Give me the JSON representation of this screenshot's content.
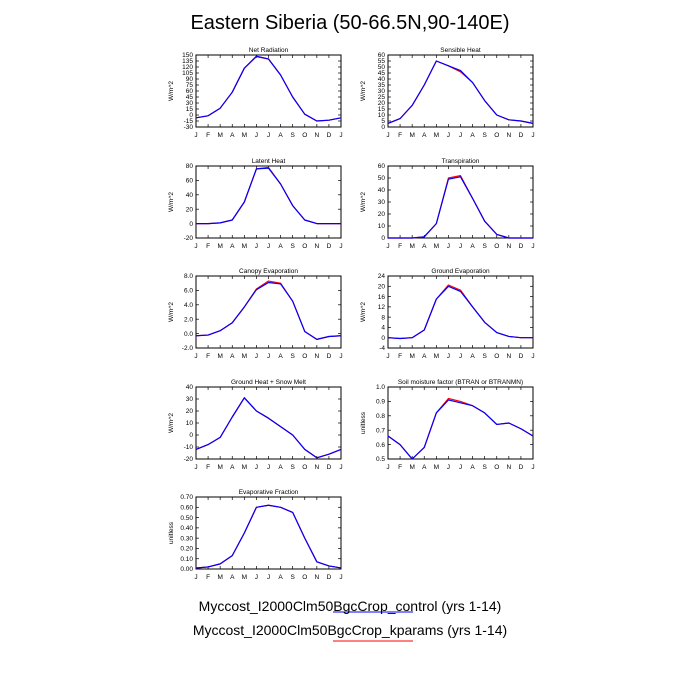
{
  "figure": {
    "title": "Eastern Siberia (50-66.5N,90-140E)",
    "legend": [
      {
        "label": "Myccost_I2000Clm50BgcCrop_control (yrs 1-14)",
        "color": "#0000ff"
      },
      {
        "label": "Myccost_I2000Clm50BgcCrop_kparams (yrs 1-14)",
        "color": "#ff0000"
      }
    ]
  },
  "chart_data": [
    {
      "type": "line",
      "title": "Net Radiation",
      "ylabel": "W/m^2",
      "x": [
        "J",
        "F",
        "M",
        "A",
        "M",
        "J",
        "J",
        "A",
        "S",
        "O",
        "N",
        "D",
        "J"
      ],
      "ylim": [
        -30,
        150
      ],
      "yticks": [
        -30,
        -15,
        0,
        15,
        30,
        45,
        60,
        75,
        90,
        105,
        120,
        135,
        150
      ],
      "series": [
        {
          "color": "#0000ff",
          "values": [
            -7,
            -2,
            17,
            57,
            117,
            147,
            140,
            100,
            45,
            2,
            -15,
            -13,
            -7
          ]
        },
        {
          "color": "#ff0000",
          "values": [
            -7,
            -2,
            17,
            57,
            117,
            146,
            140,
            100,
            45,
            2,
            -15,
            -13,
            -7
          ]
        }
      ]
    },
    {
      "type": "line",
      "title": "Sensible Heat",
      "ylabel": "W/m^2",
      "x": [
        "J",
        "F",
        "M",
        "A",
        "M",
        "J",
        "J",
        "A",
        "S",
        "O",
        "N",
        "D",
        "J"
      ],
      "ylim": [
        0,
        60
      ],
      "yticks": [
        0,
        5,
        10,
        15,
        20,
        25,
        30,
        35,
        40,
        45,
        50,
        55,
        60
      ],
      "series": [
        {
          "color": "#0000ff",
          "values": [
            3,
            7,
            18,
            35,
            55,
            51,
            47,
            37,
            22,
            10,
            6,
            5,
            3
          ]
        },
        {
          "color": "#ff0000",
          "values": [
            3,
            7,
            18,
            35,
            55,
            51,
            46,
            37,
            22,
            10,
            6,
            5,
            3
          ]
        }
      ]
    },
    {
      "type": "line",
      "title": "Latent Heat",
      "ylabel": "W/m^2",
      "x": [
        "J",
        "F",
        "M",
        "A",
        "M",
        "J",
        "J",
        "A",
        "S",
        "O",
        "N",
        "D",
        "J"
      ],
      "ylim": [
        -20,
        80
      ],
      "yticks": [
        -20,
        0,
        20,
        40,
        60,
        80
      ],
      "series": [
        {
          "color": "#0000ff",
          "values": [
            0,
            0,
            1,
            5,
            30,
            76,
            77,
            55,
            25,
            5,
            0,
            0,
            0
          ]
        },
        {
          "color": "#ff0000",
          "values": [
            0,
            0,
            1,
            5,
            30,
            76,
            78,
            55,
            25,
            5,
            0,
            0,
            0
          ]
        }
      ]
    },
    {
      "type": "line",
      "title": "Transpiration",
      "ylabel": "W/m^2",
      "x": [
        "J",
        "F",
        "M",
        "A",
        "M",
        "J",
        "J",
        "A",
        "S",
        "O",
        "N",
        "D",
        "J"
      ],
      "ylim": [
        0,
        60
      ],
      "yticks": [
        0,
        10,
        20,
        30,
        40,
        50,
        60
      ],
      "series": [
        {
          "color": "#0000ff",
          "values": [
            0,
            0,
            0,
            1,
            12,
            49,
            51,
            33,
            14,
            3,
            0,
            0,
            0
          ]
        },
        {
          "color": "#ff0000",
          "values": [
            0,
            0,
            0,
            1,
            12,
            50,
            52,
            33,
            14,
            3,
            0,
            0,
            0
          ]
        }
      ]
    },
    {
      "type": "line",
      "title": "Canopy Evaporation",
      "ylabel": "W/m^2",
      "x": [
        "J",
        "F",
        "M",
        "A",
        "M",
        "J",
        "J",
        "A",
        "S",
        "O",
        "N",
        "D",
        "J"
      ],
      "ylim": [
        -2,
        8
      ],
      "yticks": [
        "-2.0",
        "0.0",
        "2.0",
        "4.0",
        "6.0",
        "8.0"
      ],
      "series": [
        {
          "color": "#0000ff",
          "values": [
            -0.3,
            -0.2,
            0.4,
            1.5,
            3.7,
            6.1,
            7.1,
            6.9,
            4.5,
            0.3,
            -0.8,
            -0.4,
            -0.3
          ]
        },
        {
          "color": "#ff0000",
          "values": [
            -0.3,
            -0.2,
            0.4,
            1.5,
            3.7,
            6.2,
            7.3,
            7.0,
            4.5,
            0.3,
            -0.8,
            -0.4,
            -0.3
          ]
        }
      ]
    },
    {
      "type": "line",
      "title": "Ground Evaporation",
      "ylabel": "W/m^2",
      "x": [
        "J",
        "F",
        "M",
        "A",
        "M",
        "J",
        "J",
        "A",
        "S",
        "O",
        "N",
        "D",
        "J"
      ],
      "ylim": [
        -4,
        24
      ],
      "yticks": [
        -4,
        0,
        4,
        8,
        12,
        16,
        20,
        24
      ],
      "series": [
        {
          "color": "#0000ff",
          "values": [
            0,
            -0.3,
            0,
            3,
            15,
            20,
            18,
            12,
            6,
            2,
            0.5,
            0,
            0
          ]
        },
        {
          "color": "#ff0000",
          "values": [
            0,
            -0.3,
            0,
            3,
            15,
            20.5,
            18.5,
            12,
            6,
            2,
            0.5,
            0,
            0
          ]
        }
      ]
    },
    {
      "type": "line",
      "title": "Ground Heat + Snow Melt",
      "ylabel": "W/m^2",
      "x": [
        "J",
        "F",
        "M",
        "A",
        "M",
        "J",
        "J",
        "A",
        "S",
        "O",
        "N",
        "D",
        "J"
      ],
      "ylim": [
        -20,
        40
      ],
      "yticks": [
        -20,
        -10,
        0,
        10,
        20,
        30,
        40
      ],
      "series": [
        {
          "color": "#0000ff",
          "values": [
            -12,
            -8,
            -2,
            15,
            31,
            20,
            14,
            7,
            0,
            -12,
            -19,
            -16,
            -12
          ]
        },
        {
          "color": "#ff0000",
          "values": [
            -12,
            -8,
            -2,
            15,
            31,
            20,
            14,
            7,
            0,
            -12,
            -19,
            -16,
            -12
          ]
        }
      ]
    },
    {
      "type": "line",
      "title": "Soil moisture factor (BTRAN or BTRANMN)",
      "ylabel": "unitless",
      "x": [
        "J",
        "F",
        "M",
        "A",
        "M",
        "J",
        "J",
        "A",
        "S",
        "O",
        "N",
        "D",
        "J"
      ],
      "ylim": [
        0.5,
        1.0
      ],
      "yticks": [
        "0.5",
        "0.6",
        "0.7",
        "0.8",
        "0.9",
        "1.0"
      ],
      "series": [
        {
          "color": "#0000ff",
          "values": [
            0.66,
            0.6,
            0.5,
            0.58,
            0.82,
            0.91,
            0.89,
            0.87,
            0.82,
            0.74,
            0.75,
            0.71,
            0.66
          ]
        },
        {
          "color": "#ff0000",
          "values": [
            0.66,
            0.6,
            0.5,
            0.58,
            0.82,
            0.92,
            0.9,
            0.87,
            0.82,
            0.74,
            0.75,
            0.71,
            0.66
          ]
        }
      ]
    },
    {
      "type": "line",
      "title": "Evaporative Fraction",
      "ylabel": "unitless",
      "x": [
        "J",
        "F",
        "M",
        "A",
        "M",
        "J",
        "J",
        "A",
        "S",
        "O",
        "N",
        "D",
        "J"
      ],
      "ylim": [
        0,
        0.7
      ],
      "yticks": [
        "0.00",
        "0.10",
        "0.20",
        "0.30",
        "0.40",
        "0.50",
        "0.60",
        "0.70"
      ],
      "series": [
        {
          "color": "#0000ff",
          "values": [
            0.01,
            0.02,
            0.05,
            0.13,
            0.35,
            0.6,
            0.62,
            0.6,
            0.55,
            0.3,
            0.07,
            0.03,
            0.01
          ]
        },
        {
          "color": "#ff0000",
          "values": [
            0.01,
            0.02,
            0.05,
            0.13,
            0.35,
            0.6,
            0.62,
            0.6,
            0.55,
            0.3,
            0.07,
            0.03,
            0.01
          ]
        }
      ]
    }
  ]
}
